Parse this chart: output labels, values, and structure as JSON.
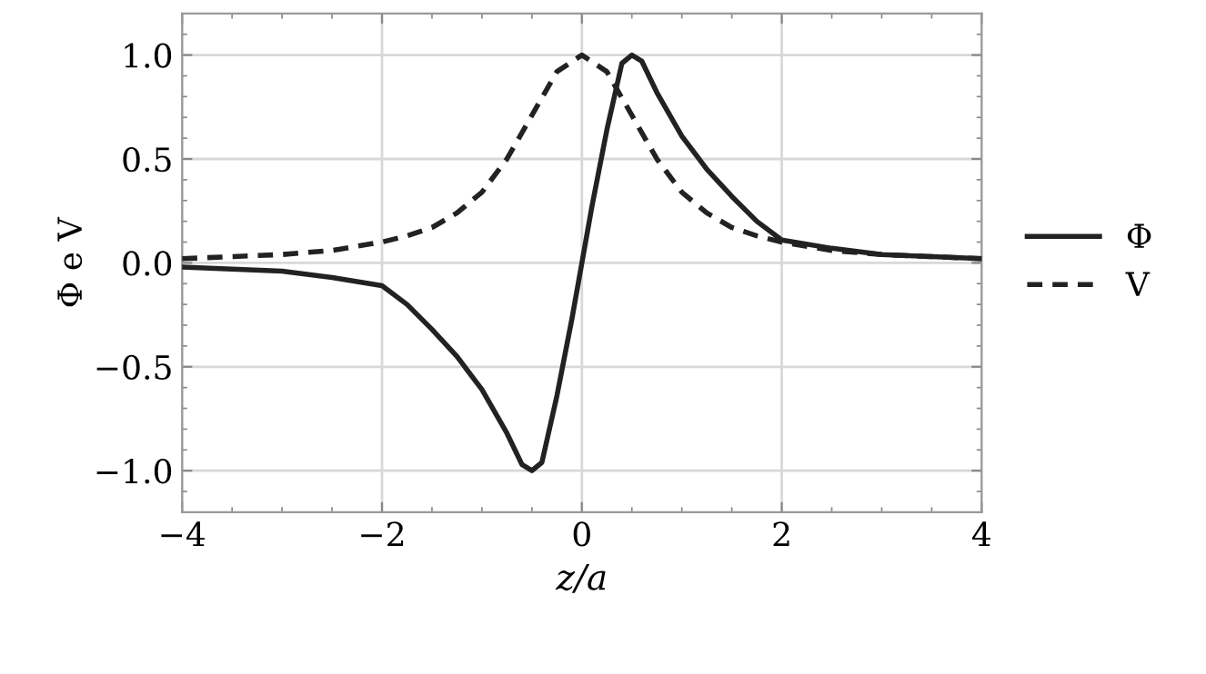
{
  "chart_data": {
    "type": "line",
    "xlabel": "z/a",
    "ylabel": "Φ e V",
    "xlim": [
      -4,
      4
    ],
    "ylim": [
      -1.2,
      1.2
    ],
    "xticks": [
      {
        "value": -4,
        "label": "−4"
      },
      {
        "value": -2,
        "label": "−2"
      },
      0,
      2,
      4
    ],
    "yticks": [
      {
        "value": -1.0,
        "label": "−1.0"
      },
      {
        "value": -0.5,
        "label": "−0.5"
      },
      {
        "value": 0,
        "label": "0.0"
      },
      0.5,
      {
        "value": 1,
        "label": "1.0"
      }
    ],
    "grid": true,
    "legend": "right",
    "marker": "none",
    "series": [
      {
        "name": "Φ",
        "color": "#222222",
        "line_style": "solid",
        "x": [
          -4,
          -3.5,
          -3,
          -2.5,
          -2,
          -1.75,
          -1.5,
          -1.25,
          -1,
          -0.75,
          -0.6,
          -0.5,
          -0.4,
          -0.25,
          -0.1,
          0,
          0.1,
          0.25,
          0.4,
          0.5,
          0.6,
          0.75,
          1,
          1.25,
          1.5,
          1.75,
          2,
          2.5,
          3,
          3.5,
          4
        ],
        "values": [
          -0.02,
          -0.03,
          -0.04,
          -0.07,
          -0.11,
          -0.2,
          -0.32,
          -0.45,
          -0.61,
          -0.82,
          -0.97,
          -1.0,
          -0.96,
          -0.64,
          -0.27,
          0,
          0.27,
          0.64,
          0.96,
          1.0,
          0.97,
          0.82,
          0.61,
          0.45,
          0.32,
          0.2,
          0.11,
          0.07,
          0.04,
          0.03,
          0.02
        ]
      },
      {
        "name": "V",
        "color": "#222222",
        "line_style": "dashed",
        "x": [
          -4,
          -3.5,
          -3,
          -2.5,
          -2,
          -1.75,
          -1.5,
          -1.25,
          -1,
          -0.75,
          -0.5,
          -0.25,
          0,
          0.25,
          0.5,
          0.75,
          1,
          1.25,
          1.5,
          1.75,
          2,
          2.5,
          3,
          3.5,
          4
        ],
        "values": [
          0.02,
          0.03,
          0.04,
          0.06,
          0.1,
          0.13,
          0.17,
          0.24,
          0.34,
          0.5,
          0.71,
          0.92,
          1.0,
          0.92,
          0.71,
          0.5,
          0.34,
          0.24,
          0.17,
          0.13,
          0.1,
          0.06,
          0.04,
          0.03,
          0.02
        ]
      }
    ]
  }
}
